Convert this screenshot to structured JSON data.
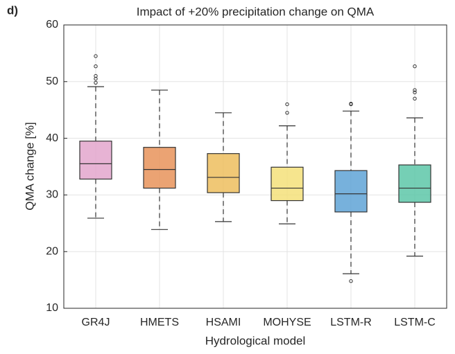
{
  "chart_data": {
    "type": "box",
    "panel_label": "d)",
    "title": "Impact of +20% precipitation change on QMA",
    "xlabel": "Hydrological model",
    "ylabel": "QMA change [%]",
    "categories": [
      "GR4J",
      "HMETS",
      "HSAMI",
      "MOHYSE",
      "LSTM-R",
      "LSTM-C"
    ],
    "boxes": [
      {
        "min": 25.9,
        "q1": 32.8,
        "median": 35.5,
        "q3": 39.5,
        "max": 49.1,
        "outliers": [
          54.5,
          52.7,
          51.0,
          50.5,
          49.8
        ],
        "color": "#e3a6cc"
      },
      {
        "min": 23.9,
        "q1": 31.2,
        "median": 34.5,
        "q3": 38.4,
        "max": 48.5,
        "outliers": [],
        "color": "#e8935a"
      },
      {
        "min": 25.3,
        "q1": 30.4,
        "median": 33.1,
        "q3": 37.3,
        "max": 44.5,
        "outliers": [],
        "color": "#edbe5e"
      },
      {
        "min": 24.9,
        "q1": 29.0,
        "median": 31.2,
        "q3": 34.9,
        "max": 42.2,
        "outliers": [
          46.0,
          44.5
        ],
        "color": "#f4e07a"
      },
      {
        "min": 16.1,
        "q1": 27.0,
        "median": 30.2,
        "q3": 34.3,
        "max": 44.8,
        "outliers": [
          46.0,
          46.1,
          14.8
        ],
        "color": "#5fa3d6"
      },
      {
        "min": 19.2,
        "q1": 28.7,
        "median": 31.2,
        "q3": 35.3,
        "max": 43.6,
        "outliers": [
          52.7,
          48.5,
          48.1,
          47.0
        ],
        "color": "#5dc7a8"
      }
    ],
    "ylim": [
      10,
      60
    ],
    "yticks": [
      10,
      20,
      30,
      40,
      50,
      60
    ],
    "grid": true
  }
}
